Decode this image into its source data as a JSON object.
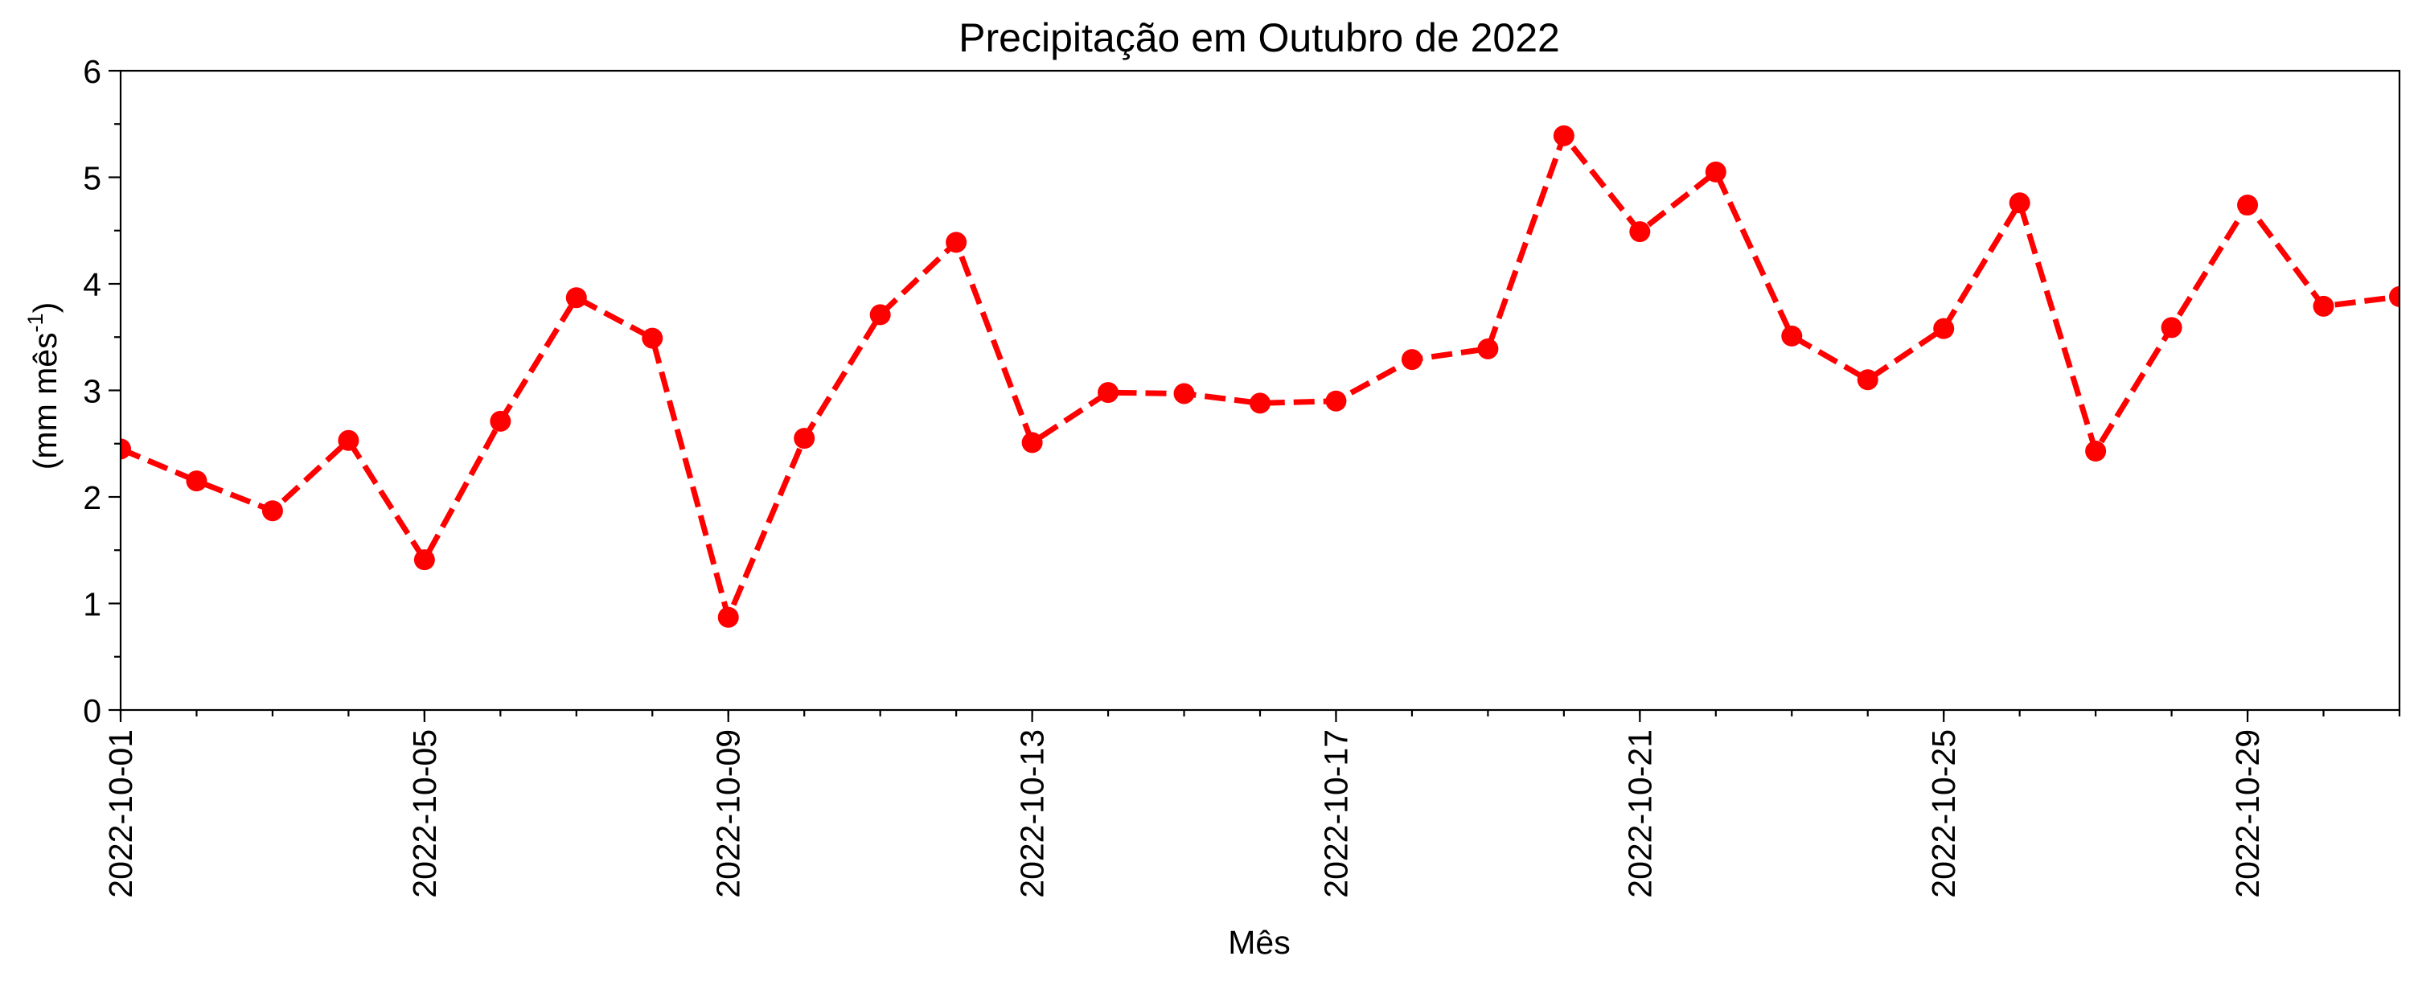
{
  "chart_data": {
    "type": "line",
    "title": "Precipitação em Outubro de 2022",
    "xlabel": "Mês",
    "ylabel": "(mm mês",
    "ylabel_superscript": "-1",
    "ylabel_suffix": ")",
    "xlim": [
      "2022-10-01",
      "2022-10-31"
    ],
    "ylim": [
      0,
      6
    ],
    "yticks": [
      0,
      1,
      2,
      3,
      4,
      5,
      6
    ],
    "xticks": [
      "2022-10-01",
      "2022-10-05",
      "2022-10-09",
      "2022-10-13",
      "2022-10-17",
      "2022-10-21",
      "2022-10-25",
      "2022-10-29"
    ],
    "grid": false,
    "legend": "none",
    "line_style": "dashed",
    "marker": "circle",
    "series": [
      {
        "color": "#ff0000",
        "x": [
          "2022-10-01",
          "2022-10-02",
          "2022-10-03",
          "2022-10-04",
          "2022-10-05",
          "2022-10-06",
          "2022-10-07",
          "2022-10-08",
          "2022-10-09",
          "2022-10-10",
          "2022-10-11",
          "2022-10-12",
          "2022-10-13",
          "2022-10-14",
          "2022-10-15",
          "2022-10-16",
          "2022-10-17",
          "2022-10-18",
          "2022-10-19",
          "2022-10-20",
          "2022-10-21",
          "2022-10-22",
          "2022-10-23",
          "2022-10-24",
          "2022-10-25",
          "2022-10-26",
          "2022-10-27",
          "2022-10-28",
          "2022-10-29",
          "2022-10-30",
          "2022-10-31"
        ],
        "values": [
          2.45,
          2.15,
          1.87,
          2.53,
          1.41,
          2.71,
          3.87,
          3.49,
          0.87,
          2.55,
          3.71,
          4.39,
          2.51,
          2.98,
          2.97,
          2.88,
          2.9,
          3.29,
          3.39,
          5.39,
          4.49,
          5.05,
          3.51,
          3.1,
          3.58,
          4.76,
          2.43,
          3.59,
          4.74,
          3.79,
          3.88
        ]
      }
    ]
  }
}
